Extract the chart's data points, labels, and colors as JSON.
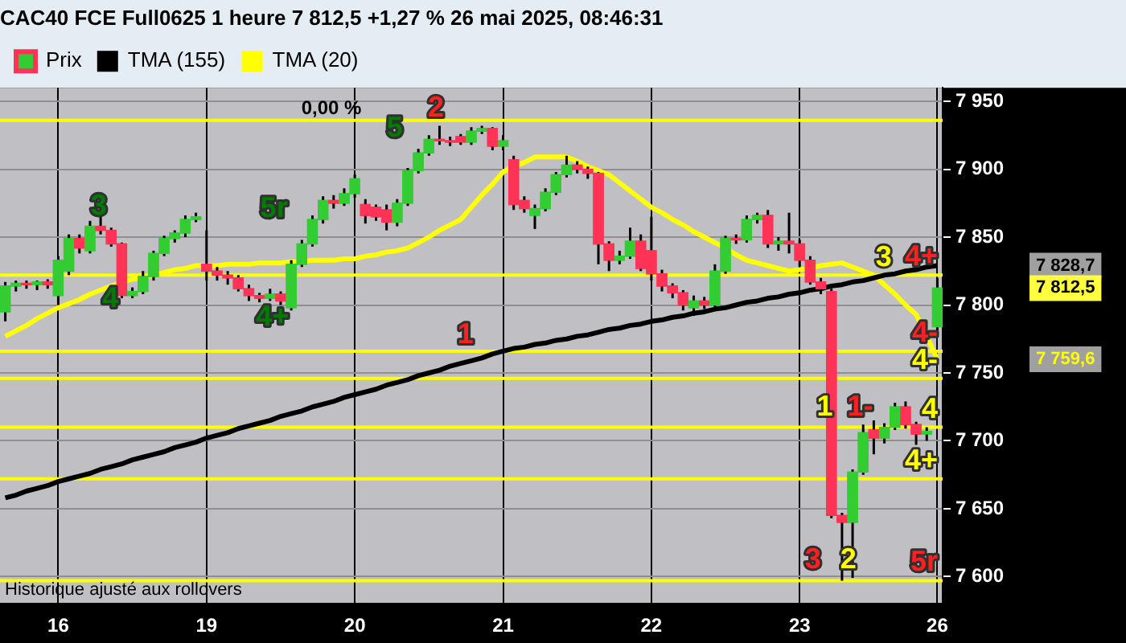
{
  "chart_data": {
    "type": "candlestick",
    "title": "CAC40 FCE Full0625 1 heure 7 812,5 +1,27 % 26 mai 2025, 08:46:31",
    "categories": [
      null,
      null,
      null,
      null,
      null,
      "16",
      null,
      null,
      null,
      null,
      null,
      null,
      null,
      null,
      null,
      null,
      null,
      null,
      null,
      "19",
      null,
      null,
      null,
      null,
      null,
      null,
      null,
      null,
      null,
      null,
      null,
      null,
      null,
      "20",
      null,
      null,
      null,
      null,
      null,
      null,
      null,
      null,
      null,
      null,
      null,
      null,
      null,
      "21",
      null,
      null,
      null,
      null,
      null,
      null,
      null,
      null,
      null,
      null,
      null,
      null,
      null,
      "22",
      null,
      null,
      null,
      null,
      null,
      null,
      null,
      null,
      null,
      null,
      null,
      null,
      null,
      "23",
      null,
      null,
      null,
      null,
      null,
      null,
      null,
      null,
      null,
      null,
      null,
      null,
      "26"
    ],
    "series": [
      {
        "name": "Prix",
        "ohlc": [
          [
            7795,
            7817,
            7788,
            7814
          ],
          [
            7814,
            7818,
            7810,
            7816
          ],
          [
            7816,
            7818,
            7812,
            7815
          ],
          [
            7815,
            7818,
            7811,
            7817
          ],
          [
            7817,
            7819,
            7812,
            7815
          ],
          [
            7807,
            7836,
            7800,
            7833
          ],
          [
            7825,
            7852,
            7822,
            7849
          ],
          [
            7849,
            7852,
            7838,
            7842
          ],
          [
            7840,
            7862,
            7838,
            7858
          ],
          [
            7858,
            7868,
            7852,
            7855
          ],
          [
            7855,
            7857,
            7843,
            7845
          ],
          [
            7845,
            7846,
            7805,
            7807
          ],
          [
            7807,
            7813,
            7805,
            7810
          ],
          [
            7810,
            7825,
            7808,
            7821
          ],
          [
            7821,
            7840,
            7818,
            7838
          ],
          [
            7838,
            7851,
            7836,
            7849
          ],
          [
            7849,
            7855,
            7846,
            7853
          ],
          [
            7853,
            7866,
            7850,
            7863
          ],
          [
            7863,
            7868,
            7861,
            7865
          ],
          [
            7830,
            7855,
            7818,
            7825
          ],
          [
            7825,
            7828,
            7818,
            7822
          ],
          [
            7822,
            7825,
            7815,
            7820
          ],
          [
            7820,
            7822,
            7810,
            7812
          ],
          [
            7812,
            7815,
            7803,
            7807
          ],
          [
            7807,
            7809,
            7802,
            7805
          ],
          [
            7805,
            7812,
            7803,
            7808
          ],
          [
            7808,
            7810,
            7800,
            7803
          ],
          [
            7798,
            7833,
            7796,
            7830
          ],
          [
            7830,
            7848,
            7828,
            7845
          ],
          [
            7845,
            7866,
            7843,
            7863
          ],
          [
            7863,
            7880,
            7860,
            7877
          ],
          [
            7877,
            7881,
            7871,
            7875
          ],
          [
            7875,
            7886,
            7873,
            7882
          ],
          [
            7882,
            7896,
            7879,
            7893
          ],
          [
            7874,
            7878,
            7860,
            7866
          ],
          [
            7872,
            7874,
            7862,
            7865
          ],
          [
            7870,
            7874,
            7855,
            7861
          ],
          [
            7861,
            7878,
            7858,
            7875
          ],
          [
            7875,
            7901,
            7873,
            7899
          ],
          [
            7899,
            7915,
            7897,
            7912
          ],
          [
            7912,
            7925,
            7910,
            7922
          ],
          [
            7922,
            7932,
            7918,
            7921
          ],
          [
            7921,
            7924,
            7917,
            7920
          ],
          [
            7924,
            7926,
            7918,
            7920
          ],
          [
            7920,
            7931,
            7918,
            7928
          ],
          [
            7928,
            7932,
            7926,
            7930
          ],
          [
            7930,
            7931,
            7914,
            7917
          ],
          [
            7917,
            7925,
            7914,
            7921
          ],
          [
            7907,
            7910,
            7870,
            7874
          ],
          [
            7877,
            7880,
            7868,
            7871
          ],
          [
            7866,
            7874,
            7856,
            7871
          ],
          [
            7871,
            7886,
            7869,
            7883
          ],
          [
            7883,
            7898,
            7881,
            7896
          ],
          [
            7896,
            7910,
            7894,
            7903
          ],
          [
            7903,
            7906,
            7897,
            7900
          ],
          [
            7900,
            7902,
            7893,
            7897
          ],
          [
            7897,
            7898,
            7830,
            7845
          ],
          [
            7845,
            7847,
            7825,
            7833
          ],
          [
            7833,
            7840,
            7830,
            7836
          ],
          [
            7836,
            7857,
            7834,
            7847
          ],
          [
            7847,
            7852,
            7825,
            7827
          ],
          [
            7840,
            7865,
            7818,
            7823
          ],
          [
            7823,
            7826,
            7810,
            7814
          ],
          [
            7814,
            7816,
            7805,
            7809
          ],
          [
            7809,
            7811,
            7796,
            7800
          ],
          [
            7798,
            7807,
            7792,
            7803
          ],
          [
            7803,
            7806,
            7797,
            7800
          ],
          [
            7800,
            7830,
            7797,
            7825
          ],
          [
            7825,
            7851,
            7823,
            7849
          ],
          [
            7849,
            7852,
            7845,
            7848
          ],
          [
            7848,
            7866,
            7846,
            7863
          ],
          [
            7863,
            7868,
            7860,
            7866
          ],
          [
            7866,
            7870,
            7842,
            7845
          ],
          [
            7845,
            7850,
            7840,
            7847
          ],
          [
            7847,
            7868,
            7838,
            7845
          ],
          [
            7845,
            7848,
            7828,
            7833
          ],
          [
            7833,
            7836,
            7815,
            7817
          ],
          [
            7817,
            7820,
            7808,
            7812
          ],
          [
            7810,
            7812,
            7643,
            7645
          ],
          [
            7645,
            7647,
            7597,
            7640
          ],
          [
            7640,
            7679,
            7599,
            7677
          ],
          [
            7677,
            7712,
            7675,
            7706
          ],
          [
            7708,
            7715,
            7690,
            7702
          ],
          [
            7702,
            7713,
            7698,
            7710
          ],
          [
            7710,
            7728,
            7708,
            7725
          ],
          [
            7725,
            7729,
            7709,
            7712
          ],
          [
            7712,
            7714,
            7697,
            7705
          ],
          [
            7705,
            7710,
            7700,
            7707
          ],
          [
            7784,
            7820,
            7780,
            7812.5
          ]
        ]
      },
      {
        "name": "TMA (155)",
        "type": "line",
        "color": "#000000",
        "values": [
          7658,
          7660,
          7663,
          7665,
          7667,
          7670,
          7672,
          7674,
          7676,
          7679,
          7681,
          7683,
          7686,
          7688,
          7690,
          7692,
          7695,
          7697,
          7699,
          7702,
          7704,
          7706,
          7709,
          7711,
          7713,
          7715,
          7718,
          7720,
          7722,
          7725,
          7727,
          7729,
          7732,
          7734,
          7736,
          7738,
          7741,
          7743,
          7745,
          7748,
          7750,
          7752,
          7755,
          7757,
          7759,
          7761,
          7764,
          7766,
          7768,
          7769,
          7771,
          7772,
          7774,
          7775,
          7777,
          7778,
          7780,
          7782,
          7783,
          7785,
          7786,
          7788,
          7789,
          7791,
          7792,
          7794,
          7795,
          7797,
          7798,
          7800,
          7802,
          7803,
          7805,
          7806,
          7808,
          7809,
          7811,
          7812,
          7814,
          7815,
          7817,
          7818,
          7820,
          7822,
          7823,
          7825,
          7826,
          7828,
          7829
        ]
      },
      {
        "name": "TMA (20)",
        "type": "line",
        "color": "#ffff00",
        "values": [
          7777,
          7781,
          7785,
          7790,
          7794,
          7798,
          7801,
          7804,
          7808,
          7811,
          7814,
          7817,
          7819,
          7820,
          7822,
          7824,
          7826,
          7827,
          7829,
          7829,
          7829,
          7830,
          7830,
          7830,
          7831,
          7831,
          7831,
          7832,
          7832,
          7833,
          7833,
          7833,
          7834,
          7834,
          7836,
          7837,
          7839,
          7840,
          7842,
          7846,
          7850,
          7855,
          7859,
          7863,
          7872,
          7881,
          7889,
          7898,
          7902,
          7905,
          7909,
          7909,
          7909,
          7909,
          7906,
          7902,
          7899,
          7896,
          7890,
          7884,
          7878,
          7872,
          7868,
          7863,
          7859,
          7854,
          7850,
          7846,
          7842,
          7837,
          7833,
          7831,
          7829,
          7827,
          7825,
          7826,
          7827,
          7829,
          7830,
          7831,
          7828,
          7825,
          7822,
          7815,
          7808,
          7800,
          7793,
          7777,
          7760
        ]
      }
    ],
    "ylim": [
      7580,
      7960
    ],
    "yticks": [
      {
        "value": 7600,
        "label": "7 600"
      },
      {
        "value": 7650,
        "label": "7 650"
      },
      {
        "value": 7700,
        "label": "7 700"
      },
      {
        "value": 7750,
        "label": "7 750"
      },
      {
        "value": 7800,
        "label": "7 800"
      },
      {
        "value": 7850,
        "label": "7 850"
      },
      {
        "value": 7900,
        "label": "7 900"
      },
      {
        "value": 7950,
        "label": "7 950"
      }
    ],
    "ref_lines": [
      {
        "axis": "y",
        "value": 7936,
        "color": "#ffff00"
      },
      {
        "axis": "y",
        "value": 7822,
        "color": "#ffff00"
      },
      {
        "axis": "y",
        "value": 7766,
        "color": "#ffff00"
      },
      {
        "axis": "y",
        "value": 7746,
        "color": "#ffff00"
      },
      {
        "axis": "y",
        "value": 7710,
        "color": "#ffff00"
      },
      {
        "axis": "y",
        "value": 7672,
        "color": "#ffff00"
      },
      {
        "axis": "y",
        "value": 7597,
        "color": "#ffff00"
      }
    ],
    "annotations": [
      "0,00 %",
      "2",
      "5",
      "3",
      "5r",
      "4",
      "4+",
      "1",
      "3",
      "1",
      "1-",
      "3",
      "2",
      "4+",
      "4-",
      "4-",
      "4",
      "4+",
      "5r",
      "7 828,7",
      "7 812,5",
      "7 759,6",
      "Historique ajusté aux rollovers"
    ],
    "grid": true,
    "legend": "top left",
    "marker": "none"
  }
}
